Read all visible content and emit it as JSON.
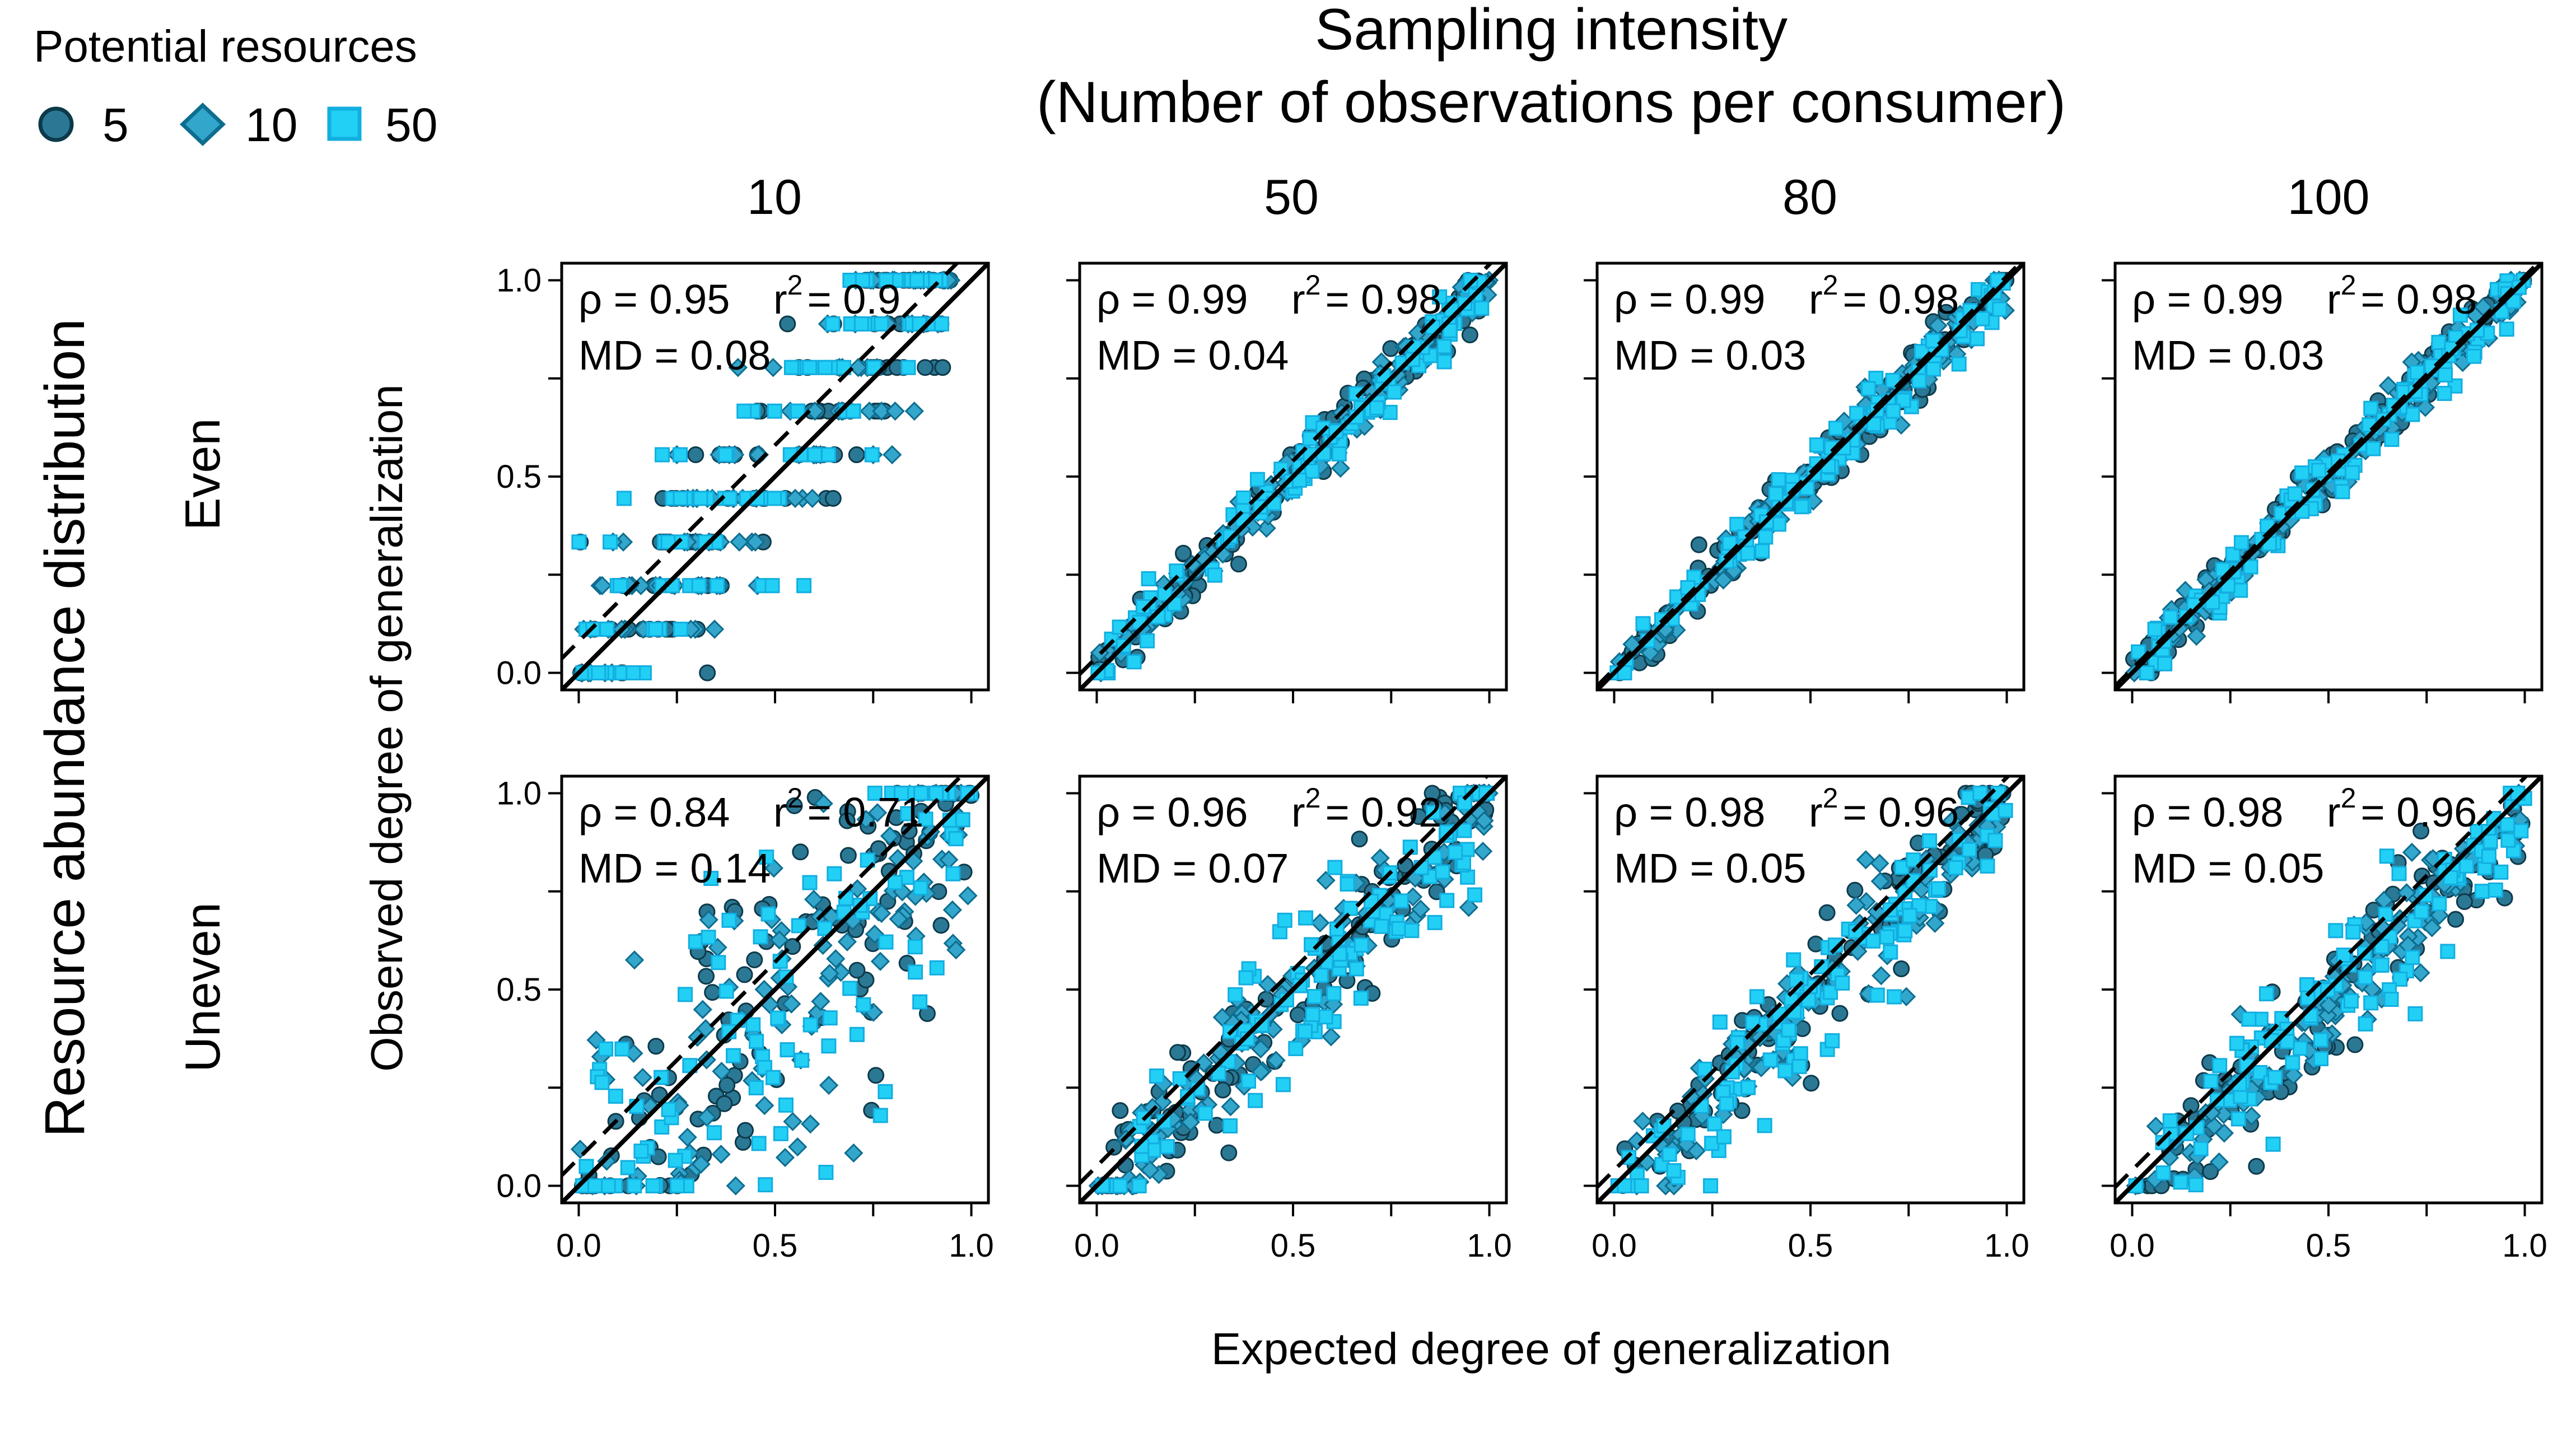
{
  "figure": {
    "title_line1": "Sampling intensity",
    "title_line2": "(Number of observations per consumer)",
    "row_group_label": "Resource abundance distribution",
    "ylabel": "Observed degree of generalization",
    "xlabel": "Expected degree of generalization",
    "legend": {
      "title": "Potential resources",
      "items": [
        {
          "label": "5",
          "marker": "circle",
          "color": "#2b7895"
        },
        {
          "label": "10",
          "marker": "diamond",
          "color": "#33a6cc"
        },
        {
          "label": "50",
          "marker": "square",
          "color": "#22d0f5"
        }
      ]
    },
    "column_labels": [
      "10",
      "50",
      "80",
      "100"
    ],
    "row_labels": [
      "Even",
      "Uneven"
    ],
    "tick_labels": [
      "0.0",
      "0.5",
      "1.0"
    ]
  },
  "chart_data": {
    "type": "scatter",
    "xlim": [
      0,
      1
    ],
    "ylim": [
      0,
      1
    ],
    "x_ticks": [
      0,
      0.5,
      1
    ],
    "y_ticks": [
      0,
      0.5,
      1
    ],
    "grid": false,
    "reference_lines": [
      "1:1 line (solid)",
      "fitted line (dashed)"
    ],
    "series": [
      {
        "name": "5",
        "color": "#2b7895",
        "marker": "circle"
      },
      {
        "name": "10",
        "color": "#33a6cc",
        "marker": "diamond"
      },
      {
        "name": "50",
        "color": "#22d0f5",
        "marker": "square"
      }
    ],
    "panels": [
      {
        "row": "Even",
        "column": "10",
        "rho": "0.95",
        "r2": "0.9",
        "md": "0.08",
        "rho_text": "ρ = 0.95",
        "r2_text": "= 0.9",
        "md_text": "MD = 0.08",
        "fit_intercept": 0.08,
        "fit_slope": 1.0
      },
      {
        "row": "Even",
        "column": "50",
        "rho": "0.99",
        "r2": "0.98",
        "md": "0.04",
        "rho_text": "ρ = 0.99",
        "r2_text": "= 0.98",
        "md_text": "MD = 0.04",
        "fit_intercept": 0.04,
        "fit_slope": 1.0
      },
      {
        "row": "Even",
        "column": "80",
        "rho": "0.99",
        "r2": "0.98",
        "md": "0.03",
        "rho_text": "ρ = 0.99",
        "r2_text": "= 0.98",
        "md_text": "MD = 0.03",
        "fit_intercept": 0.01,
        "fit_slope": 1.0
      },
      {
        "row": "Even",
        "column": "100",
        "rho": "0.99",
        "r2": "0.98",
        "md": "0.03",
        "rho_text": "ρ = 0.99",
        "r2_text": "= 0.98",
        "md_text": "MD = 0.03",
        "fit_intercept": 0.01,
        "fit_slope": 1.0
      },
      {
        "row": "Uneven",
        "column": "10",
        "rho": "0.84",
        "r2": "0.71",
        "md": "0.14",
        "rho_text": "ρ = 0.84",
        "r2_text": "= 0.71",
        "md_text": "MD = 0.14",
        "fit_intercept": 0.07,
        "fit_slope": 1.0
      },
      {
        "row": "Uneven",
        "column": "50",
        "rho": "0.96",
        "r2": "0.92",
        "md": "0.07",
        "rho_text": "ρ = 0.96",
        "r2_text": "= 0.92",
        "md_text": "MD = 0.07",
        "fit_intercept": 0.05,
        "fit_slope": 1.0
      },
      {
        "row": "Uneven",
        "column": "80",
        "rho": "0.98",
        "r2": "0.96",
        "md": "0.05",
        "rho_text": "ρ = 0.98",
        "r2_text": "= 0.96",
        "md_text": "MD = 0.05",
        "fit_intercept": 0.04,
        "fit_slope": 1.0
      },
      {
        "row": "Uneven",
        "column": "100",
        "rho": "0.98",
        "r2": "0.96",
        "md": "0.05",
        "rho_text": "ρ = 0.98",
        "r2_text": "= 0.96",
        "md_text": "MD = 0.05",
        "fit_intercept": 0.04,
        "fit_slope": 1.0
      }
    ]
  }
}
